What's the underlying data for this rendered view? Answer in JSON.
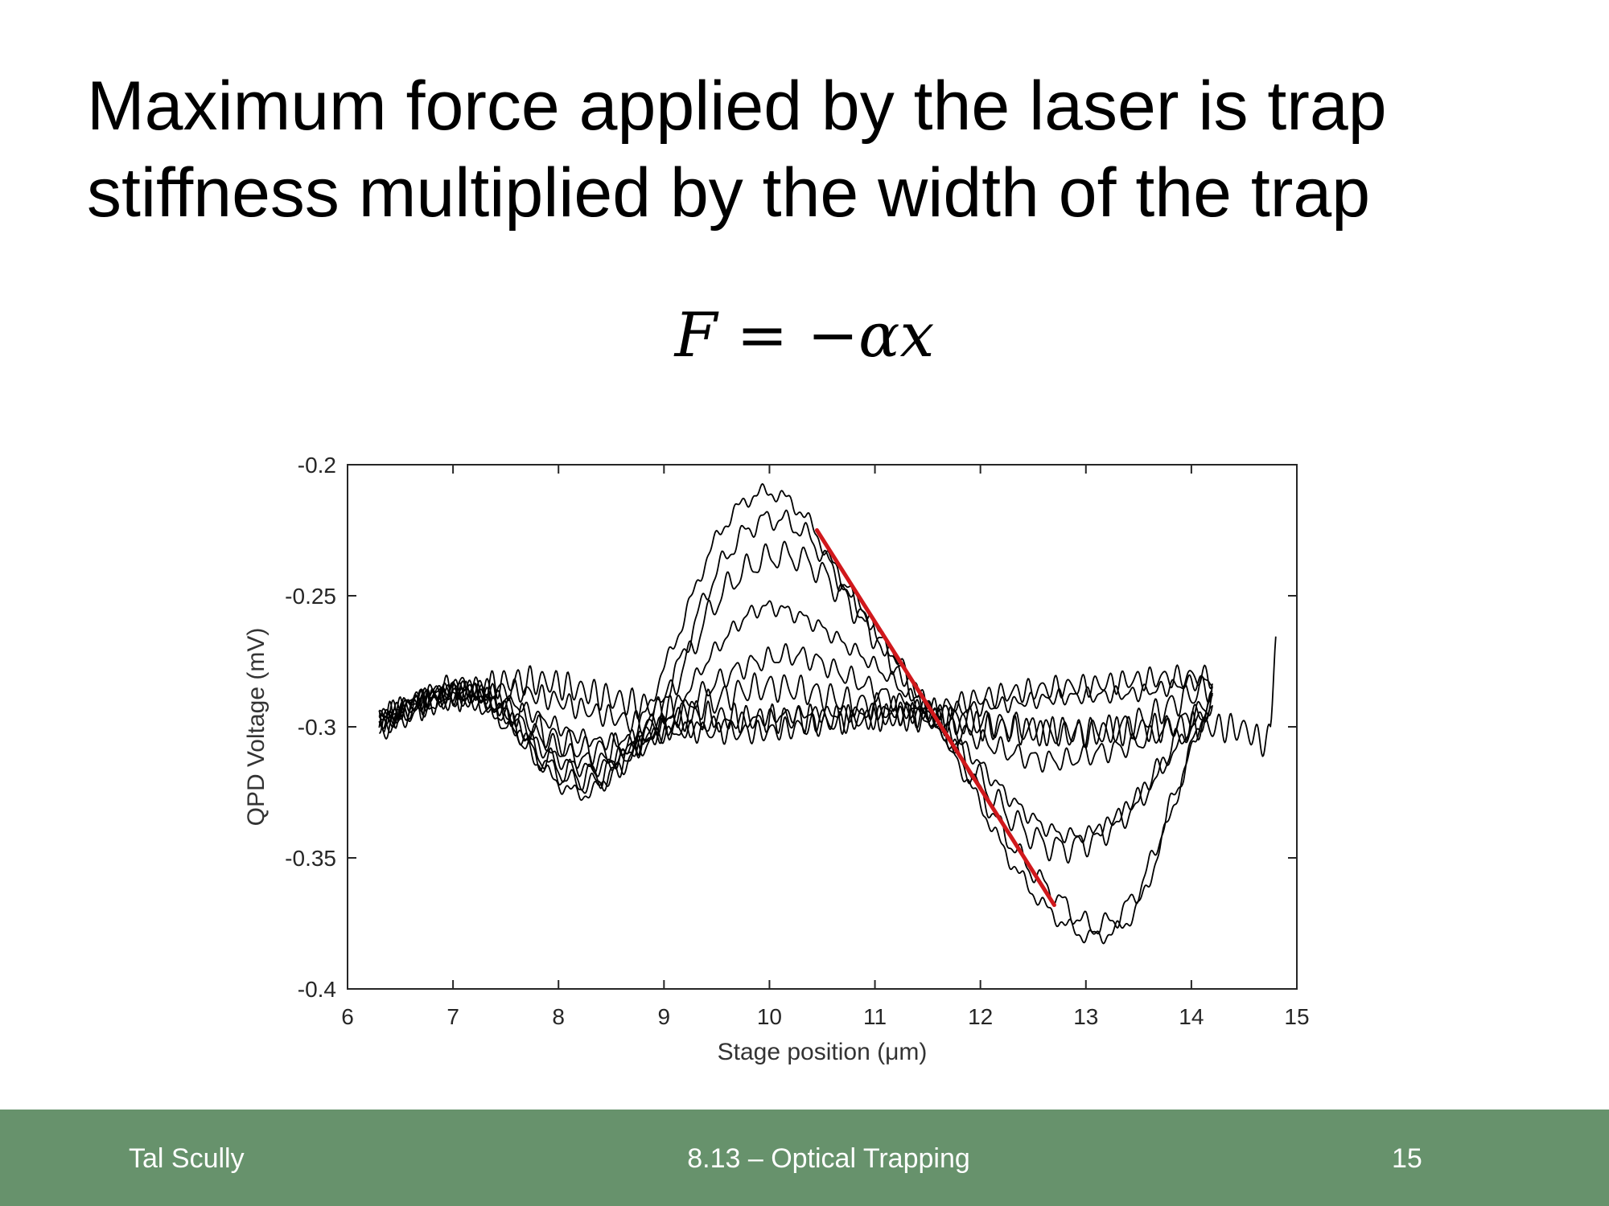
{
  "slide": {
    "title_lines": [
      "Maximum force applied by the laser is trap",
      "stiffness multiplied by the width of the trap"
    ],
    "equation": {
      "lhs": "F",
      "equals": "=",
      "minus": "−",
      "rhs": "αx"
    }
  },
  "footer": {
    "author": "Tal Scully",
    "course": "8.13 – Optical Trapping",
    "page": "15",
    "bg_color": "#67926c"
  },
  "chart_data": {
    "type": "line",
    "title": "",
    "xlabel": "Stage position (μm)",
    "ylabel": "QPD Voltage (mV)",
    "xlim": [
      6,
      15
    ],
    "ylim": [
      -0.4,
      -0.2
    ],
    "xticks": [
      6,
      7,
      8,
      9,
      10,
      11,
      12,
      13,
      14,
      15
    ],
    "xtick_labels": [
      "6",
      "7",
      "8",
      "9",
      "10",
      "11",
      "12",
      "13",
      "14",
      "15"
    ],
    "yticks": [
      -0.2,
      -0.25,
      -0.3,
      -0.35,
      -0.4
    ],
    "ytick_labels": [
      "-0.2",
      "-0.25",
      "-0.3",
      "-0.35",
      "-0.4"
    ],
    "grid": false,
    "trace_color": "#000000",
    "fit_color": "#d0181c",
    "series": [
      {
        "x": [
          6.3,
          6.7,
          7.1,
          7.5,
          7.9,
          8.3,
          8.7,
          9.1,
          9.5,
          9.9,
          10.3,
          10.7,
          11.1,
          11.5,
          11.9,
          12.3,
          12.7,
          13.1,
          13.5,
          13.9,
          14.2
        ],
        "y": [
          -0.298,
          -0.291,
          -0.289,
          -0.296,
          -0.318,
          -0.325,
          -0.305,
          -0.268,
          -0.228,
          -0.211,
          -0.218,
          -0.245,
          -0.268,
          -0.292,
          -0.322,
          -0.352,
          -0.372,
          -0.38,
          -0.368,
          -0.322,
          -0.289
        ]
      },
      {
        "x": [
          6.3,
          6.7,
          7.1,
          7.5,
          7.9,
          8.3,
          8.7,
          9.1,
          9.5,
          9.9,
          10.3,
          10.7,
          11.1,
          11.5,
          11.9,
          12.3,
          12.7,
          13.1,
          13.5,
          13.9,
          14.2
        ],
        "y": [
          -0.299,
          -0.292,
          -0.288,
          -0.297,
          -0.315,
          -0.322,
          -0.31,
          -0.28,
          -0.241,
          -0.222,
          -0.225,
          -0.246,
          -0.27,
          -0.293,
          -0.318,
          -0.345,
          -0.364,
          -0.376,
          -0.362,
          -0.32,
          -0.29
        ]
      },
      {
        "x": [
          6.3,
          6.7,
          7.1,
          7.5,
          7.9,
          8.3,
          8.7,
          9.1,
          9.5,
          9.9,
          10.3,
          10.7,
          11.1,
          11.5,
          11.9,
          12.3,
          12.7,
          13.1,
          13.5,
          13.9,
          14.2
        ],
        "y": [
          -0.3,
          -0.291,
          -0.287,
          -0.298,
          -0.313,
          -0.319,
          -0.309,
          -0.284,
          -0.252,
          -0.237,
          -0.236,
          -0.25,
          -0.271,
          -0.294,
          -0.315,
          -0.335,
          -0.346,
          -0.342,
          -0.328,
          -0.304,
          -0.292
        ]
      },
      {
        "x": [
          6.3,
          6.7,
          7.1,
          7.5,
          7.9,
          8.3,
          8.7,
          9.1,
          9.5,
          9.9,
          10.3,
          10.7,
          11.1,
          11.5,
          11.9,
          12.3,
          12.7,
          13.1,
          13.5,
          13.9,
          14.2
        ],
        "y": [
          -0.298,
          -0.29,
          -0.286,
          -0.296,
          -0.31,
          -0.316,
          -0.309,
          -0.293,
          -0.27,
          -0.255,
          -0.258,
          -0.268,
          -0.28,
          -0.295,
          -0.31,
          -0.328,
          -0.34,
          -0.34,
          -0.327,
          -0.306,
          -0.293
        ]
      },
      {
        "x": [
          6.3,
          6.7,
          7.1,
          7.5,
          7.9,
          8.3,
          8.7,
          9.1,
          9.5,
          9.9,
          10.3,
          10.7,
          11.1,
          11.5,
          11.9,
          12.3,
          12.7,
          13.1,
          13.5,
          13.9,
          14.2
        ],
        "y": [
          -0.298,
          -0.29,
          -0.286,
          -0.294,
          -0.306,
          -0.313,
          -0.31,
          -0.297,
          -0.283,
          -0.275,
          -0.273,
          -0.28,
          -0.288,
          -0.296,
          -0.303,
          -0.31,
          -0.313,
          -0.31,
          -0.306,
          -0.298,
          -0.292
        ]
      },
      {
        "x": [
          6.3,
          6.7,
          7.1,
          7.5,
          7.9,
          8.3,
          8.7,
          9.1,
          9.5,
          9.9,
          10.3,
          10.7,
          11.1,
          11.5,
          11.9,
          12.3,
          12.7,
          13.1,
          13.5,
          13.9,
          14.2
        ],
        "y": [
          -0.298,
          -0.29,
          -0.285,
          -0.292,
          -0.303,
          -0.309,
          -0.306,
          -0.298,
          -0.29,
          -0.285,
          -0.286,
          -0.29,
          -0.293,
          -0.296,
          -0.298,
          -0.3,
          -0.302,
          -0.302,
          -0.298,
          -0.29,
          -0.285
        ]
      },
      {
        "x": [
          6.3,
          6.7,
          7.1,
          7.5,
          7.9,
          8.3,
          8.7,
          9.1,
          9.5,
          9.9,
          10.3,
          10.7,
          11.1,
          11.5,
          11.9,
          12.3,
          12.7,
          13.1,
          13.5,
          13.9,
          14.2
        ],
        "y": [
          -0.297,
          -0.289,
          -0.286,
          -0.29,
          -0.298,
          -0.305,
          -0.305,
          -0.302,
          -0.299,
          -0.297,
          -0.295,
          -0.295,
          -0.294,
          -0.294,
          -0.293,
          -0.291,
          -0.289,
          -0.288,
          -0.287,
          -0.284,
          -0.282
        ]
      },
      {
        "x": [
          6.3,
          6.7,
          7.1,
          7.5,
          7.9,
          8.3,
          8.7,
          9.1,
          9.5,
          9.9,
          10.3,
          10.7,
          11.1,
          11.5,
          11.9,
          12.3,
          12.7,
          13.1,
          13.5,
          13.9,
          14.2
        ],
        "y": [
          -0.296,
          -0.29,
          -0.287,
          -0.286,
          -0.289,
          -0.294,
          -0.298,
          -0.301,
          -0.302,
          -0.302,
          -0.3,
          -0.298,
          -0.296,
          -0.294,
          -0.29,
          -0.287,
          -0.285,
          -0.284,
          -0.282,
          -0.281,
          -0.281
        ]
      },
      {
        "x": [
          6.3,
          6.7,
          7.1,
          7.5,
          7.9,
          8.3,
          8.7,
          9.1,
          9.5,
          9.9,
          10.3,
          10.7,
          11.1,
          11.5,
          11.9,
          12.3,
          12.7,
          13.1,
          13.5,
          13.9,
          14.2,
          14.5,
          14.75,
          14.8
        ],
        "y": [
          -0.297,
          -0.292,
          -0.288,
          -0.283,
          -0.283,
          -0.287,
          -0.291,
          -0.294,
          -0.296,
          -0.297,
          -0.297,
          -0.297,
          -0.296,
          -0.297,
          -0.299,
          -0.301,
          -0.302,
          -0.302,
          -0.301,
          -0.3,
          -0.3,
          -0.301,
          -0.303,
          -0.262
        ]
      }
    ],
    "fit_line": {
      "x": [
        10.45,
        12.7
      ],
      "y": [
        -0.225,
        -0.368
      ]
    }
  }
}
